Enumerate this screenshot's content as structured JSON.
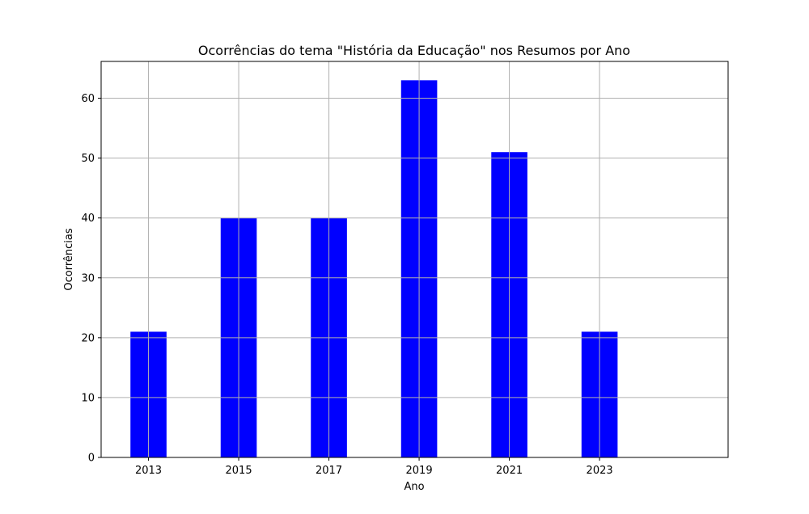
{
  "chart_data": {
    "type": "bar",
    "title": "Ocorrências do tema \"História da Educação\" nos Resumos por Ano",
    "xlabel": "Ano",
    "ylabel": "Ocorrências",
    "categories": [
      "2013",
      "2015",
      "2017",
      "2019",
      "2021",
      "2023"
    ],
    "x": [
      2013,
      2015,
      2017,
      2019,
      2021,
      2023
    ],
    "values": [
      21,
      40,
      40,
      63,
      51,
      21
    ],
    "xlim": [
      2011.95,
      2025.85
    ],
    "ylim": [
      0,
      66.15
    ],
    "yticks": [
      0,
      10,
      20,
      30,
      40,
      50,
      60
    ],
    "bar_width_years": 0.8,
    "bar_color": "#0000ff",
    "grid": true,
    "legend": "none"
  }
}
